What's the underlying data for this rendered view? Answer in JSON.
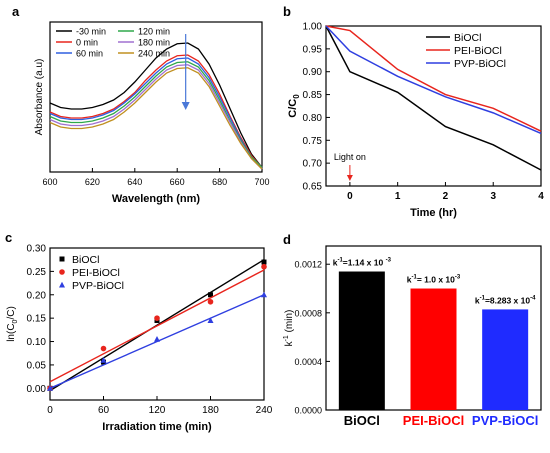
{
  "chart_data": [
    {
      "id": "a",
      "panel_label": "a",
      "type": "line",
      "xlabel": "Wavelength (nm)",
      "ylabel": "Absorbance (a.u)",
      "x_ticks": [
        "600",
        "620",
        "640",
        "660",
        "680",
        "700"
      ],
      "xlim": [
        600,
        700
      ],
      "ylim": [
        0,
        1
      ],
      "legend_position": "top-left",
      "arrow_direction": "down",
      "series": [
        {
          "name": "-30 min",
          "color": "#000000",
          "x": [
            600,
            605,
            610,
            615,
            620,
            625,
            630,
            635,
            640,
            645,
            650,
            655,
            660,
            665,
            670,
            675,
            680,
            685,
            690,
            695,
            700
          ],
          "y": [
            0.46,
            0.43,
            0.42,
            0.42,
            0.43,
            0.45,
            0.48,
            0.53,
            0.6,
            0.68,
            0.76,
            0.82,
            0.855,
            0.86,
            0.82,
            0.72,
            0.58,
            0.42,
            0.26,
            0.12,
            0.03
          ]
        },
        {
          "name": "0 min",
          "color": "#e8251d",
          "x": [
            600,
            605,
            610,
            615,
            620,
            625,
            630,
            635,
            640,
            645,
            650,
            655,
            660,
            665,
            670,
            675,
            680,
            685,
            690,
            695,
            700
          ],
          "y": [
            0.4,
            0.37,
            0.36,
            0.36,
            0.37,
            0.39,
            0.42,
            0.47,
            0.53,
            0.61,
            0.68,
            0.74,
            0.775,
            0.78,
            0.74,
            0.65,
            0.52,
            0.37,
            0.23,
            0.11,
            0.03
          ]
        },
        {
          "name": "60 min",
          "color": "#2f5fe0",
          "x": [
            600,
            605,
            610,
            615,
            620,
            625,
            630,
            635,
            640,
            645,
            650,
            655,
            660,
            665,
            670,
            675,
            680,
            685,
            690,
            695,
            700
          ],
          "y": [
            0.39,
            0.36,
            0.35,
            0.35,
            0.36,
            0.38,
            0.41,
            0.46,
            0.52,
            0.59,
            0.66,
            0.72,
            0.755,
            0.76,
            0.72,
            0.63,
            0.5,
            0.36,
            0.22,
            0.1,
            0.03
          ]
        },
        {
          "name": "120 min",
          "color": "#2fa84a",
          "x": [
            600,
            605,
            610,
            615,
            620,
            625,
            630,
            635,
            640,
            645,
            650,
            655,
            660,
            665,
            670,
            675,
            680,
            685,
            690,
            695,
            700
          ],
          "y": [
            0.37,
            0.34,
            0.33,
            0.33,
            0.34,
            0.36,
            0.39,
            0.44,
            0.5,
            0.57,
            0.64,
            0.7,
            0.73,
            0.735,
            0.7,
            0.61,
            0.48,
            0.34,
            0.21,
            0.1,
            0.03
          ]
        },
        {
          "name": "180 min",
          "color": "#a070d0",
          "x": [
            600,
            605,
            610,
            615,
            620,
            625,
            630,
            635,
            640,
            645,
            650,
            655,
            660,
            665,
            670,
            675,
            680,
            685,
            690,
            695,
            700
          ],
          "y": [
            0.35,
            0.32,
            0.31,
            0.31,
            0.32,
            0.34,
            0.37,
            0.42,
            0.48,
            0.55,
            0.62,
            0.68,
            0.71,
            0.715,
            0.68,
            0.59,
            0.46,
            0.33,
            0.2,
            0.09,
            0.02
          ]
        },
        {
          "name": "240 min",
          "color": "#c09020",
          "x": [
            600,
            605,
            610,
            615,
            620,
            625,
            630,
            635,
            640,
            645,
            650,
            655,
            660,
            665,
            670,
            675,
            680,
            685,
            690,
            695,
            700
          ],
          "y": [
            0.33,
            0.3,
            0.29,
            0.29,
            0.3,
            0.32,
            0.35,
            0.4,
            0.46,
            0.53,
            0.6,
            0.66,
            0.69,
            0.695,
            0.66,
            0.57,
            0.44,
            0.31,
            0.19,
            0.09,
            0.02
          ]
        }
      ]
    },
    {
      "id": "b",
      "panel_label": "b",
      "type": "line",
      "xlabel": "Time (hr)",
      "ylabel": "C/C0",
      "ylabel_main": "C/C",
      "ylabel_sub": "0",
      "xlim": [
        -0.5,
        4
      ],
      "ylim": [
        0.65,
        1.0
      ],
      "x_ticks": [
        0,
        1,
        2,
        3,
        4
      ],
      "y_ticks": [
        0.65,
        0.7,
        0.75,
        0.8,
        0.85,
        0.9,
        0.95,
        1.0
      ],
      "y_tick_labels": [
        "0.65",
        "0.70",
        "0.75",
        "0.80",
        "0.85",
        "0.90",
        "0.95",
        "1.00"
      ],
      "legend_position": "top-right",
      "annotation": "Light on",
      "annotation_x": 0,
      "series": [
        {
          "name": "BiOCl",
          "color": "#000000",
          "x": [
            -0.5,
            0,
            1,
            2,
            3,
            4
          ],
          "y": [
            1.0,
            0.9,
            0.855,
            0.78,
            0.74,
            0.685
          ]
        },
        {
          "name": "PEI-BiOCl",
          "color": "#e8251d",
          "x": [
            -0.5,
            0,
            1,
            2,
            3,
            4
          ],
          "y": [
            1.0,
            0.99,
            0.905,
            0.85,
            0.82,
            0.77
          ]
        },
        {
          "name": "PVP-BiOCl",
          "color": "#2f3fe0",
          "x": [
            -0.5,
            0,
            1,
            2,
            3,
            4
          ],
          "y": [
            1.0,
            0.945,
            0.89,
            0.845,
            0.81,
            0.765
          ]
        }
      ]
    },
    {
      "id": "c",
      "panel_label": "c",
      "type": "scatter",
      "xlabel": "Irradiation time (min)",
      "ylabel": "ln(C0/C)",
      "ylabel_pre": "ln(C",
      "ylabel_sub": "0",
      "ylabel_post": "/C)",
      "xlim": [
        0,
        240
      ],
      "ylim": [
        -0.025,
        0.3
      ],
      "x_ticks": [
        0,
        60,
        120,
        180,
        240
      ],
      "y_ticks": [
        0.0,
        0.05,
        0.1,
        0.15,
        0.2,
        0.25,
        0.3
      ],
      "y_tick_labels": [
        "0.00",
        "0.05",
        "0.10",
        "0.15",
        "0.20",
        "0.25",
        "0.30"
      ],
      "legend_position": "top-left",
      "series": [
        {
          "name": "BiOCl",
          "color": "#000000",
          "marker": "square",
          "x": [
            0,
            60,
            120,
            180,
            240
          ],
          "y": [
            0.0,
            0.056,
            0.145,
            0.2,
            0.27
          ],
          "fit": [
            -0.005,
            0.275
          ]
        },
        {
          "name": "PEI-BiOCl",
          "color": "#e8251d",
          "marker": "circle",
          "x": [
            0,
            60,
            120,
            180,
            240
          ],
          "y": [
            0.0,
            0.085,
            0.15,
            0.185,
            0.26
          ],
          "fit": [
            0.014,
            0.253
          ]
        },
        {
          "name": "PVP-BiOCl",
          "color": "#2f3fe0",
          "marker": "triangle",
          "x": [
            0,
            60,
            120,
            180,
            240
          ],
          "y": [
            0.0,
            0.06,
            0.105,
            0.145,
            0.2
          ],
          "fit": [
            0.0,
            0.2
          ]
        }
      ]
    },
    {
      "id": "d",
      "panel_label": "d",
      "type": "bar",
      "ylabel": "k-1 (min)",
      "ylabel_main": "k",
      "ylabel_sup": "-1",
      "ylabel_post": " (min)",
      "ylim": [
        0,
        0.00135
      ],
      "y_ticks": [
        0,
        0.0004,
        0.0008,
        0.0012
      ],
      "y_tick_labels": [
        "0.0000",
        "0.0004",
        "0.0008",
        "0.0012"
      ],
      "categories": [
        "BiOCl",
        "PEI-BiOCl",
        "PVP-BiOCl"
      ],
      "values": [
        0.00114,
        0.001,
        0.000828
      ],
      "colors": [
        "#000000",
        "#ff0000",
        "#1f2bff"
      ],
      "bar_labels": [
        {
          "pre": "k",
          "sup": "-1",
          "mid": "=1.14 x 10 ",
          "exp": "-3"
        },
        {
          "pre": "k",
          "sup": "-1",
          "mid": "= 1.0 x 10",
          "exp": "-3"
        },
        {
          "pre": "k",
          "sup": "-1",
          "mid": "=8.283 x 10",
          "exp": "-4"
        }
      ]
    }
  ]
}
